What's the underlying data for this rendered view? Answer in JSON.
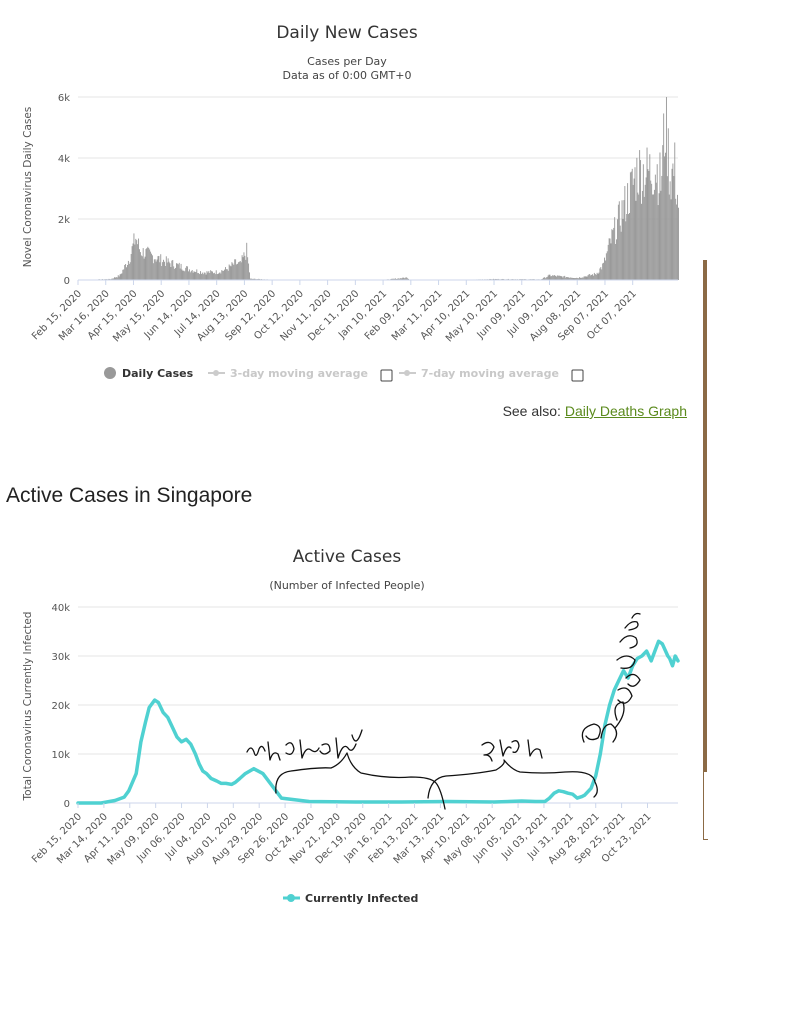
{
  "colors": {
    "bar": "#999999",
    "line": "#4fd1d1",
    "link": "#5a8a1c",
    "accent_bar": "#8b6a45",
    "grid": "#e6e6e6"
  },
  "see_also": {
    "prefix": "See also: ",
    "link_label": "Daily Deaths Graph"
  },
  "section_heading": "Active Cases in Singapore",
  "annotations": [
    "sg wanted",
    "who",
    "cross"
  ],
  "chart_data": [
    {
      "type": "bar",
      "title": "Daily New Cases",
      "subtitle_lines": [
        "Cases per Day",
        "Data as of 0:00 GMT+0"
      ],
      "ylabel": "Novel Coronavirus Daily Cases",
      "ylim": [
        0,
        6000
      ],
      "yticks": [
        0,
        2000,
        4000,
        6000
      ],
      "ytick_labels": [
        "0",
        "2k",
        "4k",
        "6k"
      ],
      "x_range_days": [
        0,
        649
      ],
      "xtick_labels": [
        "Feb 15, 2020",
        "Mar 16, 2020",
        "Apr 15, 2020",
        "May 15, 2020",
        "Jun 14, 2020",
        "Jul 14, 2020",
        "Aug 13, 2020",
        "Sep 12, 2020",
        "Oct 12, 2020",
        "Nov 11, 2020",
        "Dec 11, 2020",
        "Jan 10, 2021",
        "Feb 09, 2021",
        "Mar 11, 2021",
        "Apr 10, 2021",
        "May 10, 2021",
        "Jun 09, 2021",
        "Jul 09, 2021",
        "Aug 08, 2021",
        "Sep 07, 2021",
        "Oct 07, 2021"
      ],
      "xtick_days": [
        0,
        30,
        60,
        90,
        120,
        150,
        180,
        210,
        240,
        270,
        300,
        330,
        360,
        390,
        420,
        450,
        480,
        510,
        540,
        570,
        600
      ],
      "series_keypoints": {
        "name": "Daily Cases",
        "days": [
          0,
          35,
          45,
          55,
          62,
          67,
          75,
          90,
          105,
          120,
          135,
          150,
          160,
          170,
          175,
          182,
          186,
          195,
          210,
          330,
          356,
          358,
          420,
          450,
          500,
          510,
          520,
          540,
          560,
          568,
          575,
          585,
          598,
          605,
          615,
          625,
          630,
          635,
          640,
          645,
          649
        ],
        "values": [
          0,
          30,
          150,
          700,
          1400,
          950,
          850,
          650,
          500,
          350,
          250,
          260,
          350,
          550,
          500,
          950,
          40,
          30,
          10,
          5,
          80,
          5,
          8,
          30,
          20,
          150,
          120,
          70,
          200,
          500,
          1200,
          2000,
          3000,
          3600,
          3500,
          3700,
          3200,
          5300,
          3400,
          3600,
          2500
        ]
      },
      "legend": [
        {
          "label": "Daily Cases",
          "active": true
        },
        {
          "label": "3-day moving average",
          "active": false
        },
        {
          "label": "7-day moving average",
          "active": false
        }
      ]
    },
    {
      "type": "line",
      "title": "Active Cases",
      "subtitle": "(Number of Infected People)",
      "ylabel": "Total Coronavirus Currently Infected",
      "ylim": [
        0,
        40000
      ],
      "yticks": [
        0,
        10000,
        20000,
        30000,
        40000
      ],
      "ytick_labels": [
        "0",
        "10k",
        "20k",
        "30k",
        "40k"
      ],
      "x_range_days": [
        0,
        649
      ],
      "xtick_labels": [
        "Feb 15, 2020",
        "Mar 14, 2020",
        "Apr 11, 2020",
        "May 09, 2020",
        "Jun 06, 2020",
        "Jul 04, 2020",
        "Aug 01, 2020",
        "Aug 29, 2020",
        "Sep 26, 2020",
        "Oct 24, 2020",
        "Nov 21, 2020",
        "Dec 19, 2020",
        "Jan 16, 2021",
        "Feb 13, 2021",
        "Mar 13, 2021",
        "Apr 10, 2021",
        "May 08, 2021",
        "Jun 05, 2021",
        "Jul 03, 2021",
        "Jul 31, 2021",
        "Aug 28, 2021",
        "Sep 25, 2021",
        "Oct 23, 2021"
      ],
      "xtick_days": [
        0,
        28,
        56,
        84,
        112,
        140,
        168,
        196,
        224,
        252,
        280,
        308,
        336,
        364,
        392,
        420,
        448,
        476,
        504,
        532,
        560,
        588,
        616
      ],
      "series": [
        {
          "name": "Currently Infected",
          "x": [
            0,
            25,
            40,
            50,
            55,
            63,
            68,
            73,
            77,
            83,
            87,
            92,
            97,
            102,
            107,
            112,
            117,
            122,
            127,
            131,
            135,
            139,
            144,
            150,
            155,
            160,
            166,
            170,
            175,
            181,
            190,
            200,
            220,
            250,
            300,
            350,
            400,
            450,
            480,
            495,
            505,
            510,
            515,
            520,
            525,
            530,
            535,
            540,
            545,
            548,
            550,
            555,
            560,
            565,
            570,
            575,
            580,
            585,
            590,
            595,
            600,
            605,
            610,
            615,
            620,
            625,
            628,
            632,
            638,
            640,
            643,
            646,
            649
          ],
          "values": [
            0,
            0,
            500,
            1200,
            2500,
            6000,
            12500,
            16500,
            19500,
            21000,
            20500,
            18500,
            17500,
            15500,
            13500,
            12500,
            13000,
            12000,
            10000,
            8000,
            6500,
            6000,
            5000,
            4500,
            4000,
            4000,
            3800,
            4200,
            5000,
            6000,
            7000,
            6000,
            1000,
            300,
            200,
            200,
            300,
            200,
            400,
            300,
            300,
            1000,
            2000,
            2500,
            2300,
            2000,
            1800,
            1000,
            1300,
            1600,
            2000,
            3000,
            5500,
            10000,
            16000,
            20000,
            23000,
            25000,
            27000,
            25500,
            28000,
            29500,
            30000,
            31000,
            29000,
            31500,
            33000,
            32500,
            30000,
            29500,
            28000,
            30000,
            29000
          ]
        }
      ],
      "legend": [
        {
          "label": "Currently Infected",
          "active": true
        }
      ]
    }
  ]
}
